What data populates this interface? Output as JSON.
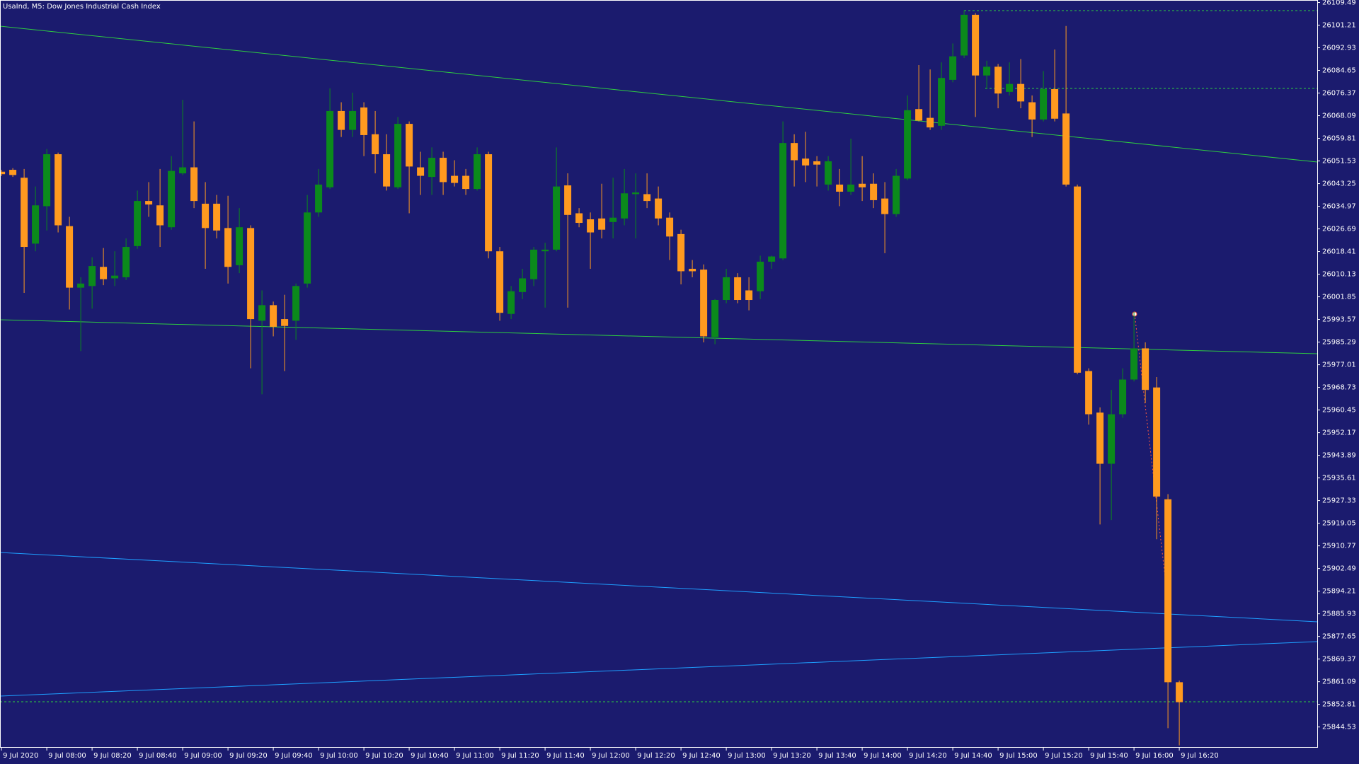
{
  "chart_data": {
    "type": "candlestick",
    "title": "UsaInd, M5:  Dow Jones Industrial Cash Index",
    "up_color": "#0b8a1c",
    "down_color": "#ff9a1f",
    "ylim": [
      25837.2,
      26110.4
    ],
    "yticks": [
      26109.49,
      26101.21,
      26092.93,
      26084.65,
      26076.37,
      26068.09,
      26059.81,
      26051.53,
      26043.25,
      26034.97,
      26026.69,
      26018.41,
      26010.13,
      26001.85,
      25993.57,
      25985.29,
      25977.01,
      25968.73,
      25960.45,
      25952.17,
      25943.89,
      25935.61,
      25927.33,
      25919.05,
      25910.77,
      25902.49,
      25894.21,
      25885.93,
      25877.65,
      25869.37,
      25861.09,
      25852.81,
      25844.53
    ],
    "grid": false,
    "categories": [
      "9 Jul 2020",
      null,
      null,
      null,
      "9 Jul 08:00",
      null,
      null,
      null,
      "9 Jul 08:20",
      null,
      null,
      null,
      "9 Jul 08:40",
      null,
      null,
      null,
      "9 Jul 09:00",
      null,
      null,
      null,
      "9 Jul 09:20",
      null,
      null,
      null,
      "9 Jul 09:40",
      null,
      null,
      null,
      "9 Jul 10:00",
      null,
      null,
      null,
      "9 Jul 10:20",
      null,
      null,
      null,
      "9 Jul 10:40",
      null,
      null,
      null,
      "9 Jul 11:00",
      null,
      null,
      null,
      "9 Jul 11:20",
      null,
      null,
      null,
      "9 Jul 11:40",
      null,
      null,
      null,
      "9 Jul 12:00",
      null,
      null,
      null,
      "9 Jul 12:20",
      null,
      null,
      null,
      "9 Jul 12:40",
      null,
      null,
      null,
      "9 Jul 13:00",
      null,
      null,
      null,
      "9 Jul 13:20",
      null,
      null,
      null,
      "9 Jul 13:40",
      null,
      null,
      null,
      "9 Jul 14:00",
      null,
      null,
      null,
      "9 Jul 14:20",
      null,
      null,
      null,
      "9 Jul 14:40",
      null,
      null,
      null,
      "9 Jul 15:00",
      null,
      null,
      null,
      "9 Jul 15:20",
      null,
      null,
      null,
      "9 Jul 15:40",
      null,
      null,
      null,
      "9 Jul 16:00",
      null,
      null,
      null,
      "9 Jul 16:20"
    ],
    "open": [
      26047.6,
      26048.3,
      26045.4,
      26021.3,
      26035.0,
      26054.0,
      26027.7,
      26005.2,
      26005.8,
      26012.8,
      26008.6,
      26009.0,
      26020.4,
      26036.9,
      26035.3,
      26027.3,
      26047.0,
      26049.2,
      26035.9,
      26035.9,
      26027.0,
      26013.4,
      26027.0,
      25993.1,
      25998.8,
      25993.7,
      25993.1,
      26006.7,
      26032.7,
      26041.9,
      26069.8,
      26062.9,
      26071.1,
      26061.3,
      26054.0,
      26041.9,
      26065.1,
      26049.2,
      26045.7,
      26052.7,
      26046.1,
      26046.1,
      26041.3,
      26054.0,
      26018.5,
      25995.6,
      26003.6,
      26008.3,
      26018.5,
      26019.1,
      26042.6,
      26032.4,
      26030.2,
      26030.5,
      26029.2,
      26030.5,
      26039.4,
      26039.4,
      26037.8,
      26030.8,
      26024.8,
      26012.1,
      26011.8,
      25987.1,
      26000.7,
      26009.0,
      26004.2,
      26003.9,
      26014.7,
      26015.9,
      26058.1,
      26052.4,
      26051.4,
      26042.9,
      26042.9,
      26040.3,
      26043.2,
      26043.2,
      26037.8,
      26032.1,
      26045.1,
      26070.5,
      26067.3,
      26064.4,
      26081.2,
      26090.1,
      26105.0,
      26082.8,
      26086.0,
      26076.8,
      26079.7,
      26073.0,
      26066.7,
      26077.8,
      26068.9,
      26042.2,
      25974.7,
      25959.5,
      25940.8,
      25958.9,
      25971.6,
      25983.0,
      25968.7,
      25927.8,
      25860.9
    ],
    "high": [
      26048.3,
      26048.9,
      26048.6,
      26042.2,
      26055.9,
      26054.6,
      26031.1,
      26009.0,
      26016.3,
      26019.7,
      26018.5,
      26023.2,
      26040.7,
      26043.8,
      26048.6,
      26053.3,
      26073.9,
      26066.0,
      26043.8,
      26039.1,
      26038.8,
      26034.3,
      26028.0,
      26004.2,
      26000.1,
      26002.6,
      26006.7,
      26039.1,
      26048.6,
      26078.1,
      26073.0,
      26076.5,
      26073.0,
      26069.8,
      26061.3,
      26067.6,
      26066.0,
      26054.9,
      26056.5,
      26054.9,
      26051.8,
      26048.6,
      26056.5,
      26054.9,
      26020.1,
      26005.8,
      26012.1,
      26020.1,
      26021.6,
      26056.5,
      26047.0,
      26034.3,
      26032.7,
      26043.2,
      26045.4,
      26048.6,
      26047.0,
      26047.0,
      26042.2,
      26032.7,
      26026.4,
      26015.3,
      26013.7,
      26001.0,
      26012.1,
      26010.5,
      26009.0,
      26016.9,
      26016.9,
      26066.0,
      26061.3,
      26062.2,
      26053.3,
      26053.3,
      26048.6,
      26059.7,
      26053.3,
      26047.0,
      26043.8,
      26048.6,
      26075.5,
      26086.6,
      26085.0,
      26087.6,
      26094.5,
      26106.6,
      26105.6,
      26088.2,
      26087.0,
      26087.6,
      26088.8,
      26075.5,
      26084.4,
      26092.3,
      26100.9,
      26042.9,
      25975.7,
      25961.4,
      25967.8,
      25975.7,
      25996.3,
      25985.2,
      25972.5,
      25929.7,
      25861.5
    ],
    "low": [
      26046.0,
      26045.7,
      26003.3,
      26018.5,
      26026.1,
      26025.4,
      25997.2,
      25982.0,
      25997.5,
      26006.1,
      26005.8,
      26008.0,
      26019.4,
      26031.1,
      26020.1,
      26026.4,
      26046.4,
      26034.3,
      26012.1,
      26023.2,
      26006.7,
      26010.5,
      25975.7,
      25966.2,
      25987.4,
      25974.7,
      25986.1,
      26005.2,
      26031.1,
      26041.3,
      26060.3,
      26060.3,
      26053.3,
      26047.0,
      26040.7,
      26041.3,
      26032.4,
      26039.1,
      26039.1,
      26039.1,
      26042.2,
      26039.1,
      26040.7,
      26015.9,
      25993.1,
      25993.7,
      26001.0,
      26005.8,
      25997.9,
      26018.5,
      25997.9,
      26027.3,
      26012.1,
      26023.2,
      26023.2,
      26028.0,
      26023.2,
      26034.3,
      26028.0,
      26015.3,
      26006.4,
      26009.0,
      25985.2,
      25984.5,
      25999.5,
      25999.5,
      25996.9,
      26001.0,
      26012.1,
      26015.3,
      26042.2,
      26043.8,
      26042.2,
      26040.7,
      26035.0,
      26039.1,
      26036.9,
      26034.3,
      26017.8,
      26031.1,
      26044.5,
      26066.0,
      26062.9,
      26062.9,
      26080.3,
      26089.2,
      26067.6,
      26077.8,
      26070.8,
      26075.5,
      26070.8,
      26060.3,
      26066.0,
      26066.0,
      26042.2,
      25973.5,
      25955.1,
      25918.6,
      25920.2,
      25957.6,
      25970.9,
      25963.0,
      25913.2,
      25844.1,
      25837.8
    ],
    "close": [
      26046.7,
      26046.4,
      26020.1,
      26035.3,
      26054.0,
      26028.0,
      26005.2,
      26006.7,
      26013.1,
      26008.3,
      26009.6,
      26020.1,
      26036.9,
      26035.6,
      26028.0,
      26047.9,
      26049.2,
      26036.9,
      26027.0,
      26026.1,
      26012.8,
      26027.3,
      25993.7,
      25998.8,
      25990.9,
      25991.2,
      26005.8,
      26032.7,
      26042.9,
      26069.8,
      26062.9,
      26069.8,
      26061.0,
      26054.0,
      26042.2,
      26065.1,
      26049.5,
      26046.1,
      26052.7,
      26043.8,
      26043.5,
      26041.3,
      26054.0,
      26018.5,
      25996.0,
      26003.9,
      26008.6,
      26019.1,
      26019.1,
      26042.2,
      26031.8,
      26028.9,
      26025.4,
      26026.4,
      26030.8,
      26039.7,
      26040.0,
      26036.9,
      26030.5,
      26023.9,
      26011.2,
      26011.2,
      25987.4,
      26000.7,
      26009.0,
      26000.7,
      26000.7,
      26014.7,
      26016.6,
      26058.1,
      26051.8,
      26049.9,
      26050.2,
      26051.4,
      26040.3,
      26042.9,
      26041.9,
      26037.2,
      26032.1,
      26046.1,
      26070.1,
      26066.3,
      26063.8,
      26081.9,
      26089.8,
      26105.0,
      26082.8,
      26086.0,
      26076.2,
      26079.7,
      26073.3,
      26066.7,
      26077.8,
      26067.0,
      26042.9,
      25974.1,
      25958.9,
      25940.8,
      25958.9,
      25971.6,
      25983.0,
      25967.8,
      25928.8,
      25860.9,
      25853.6
    ]
  }
}
